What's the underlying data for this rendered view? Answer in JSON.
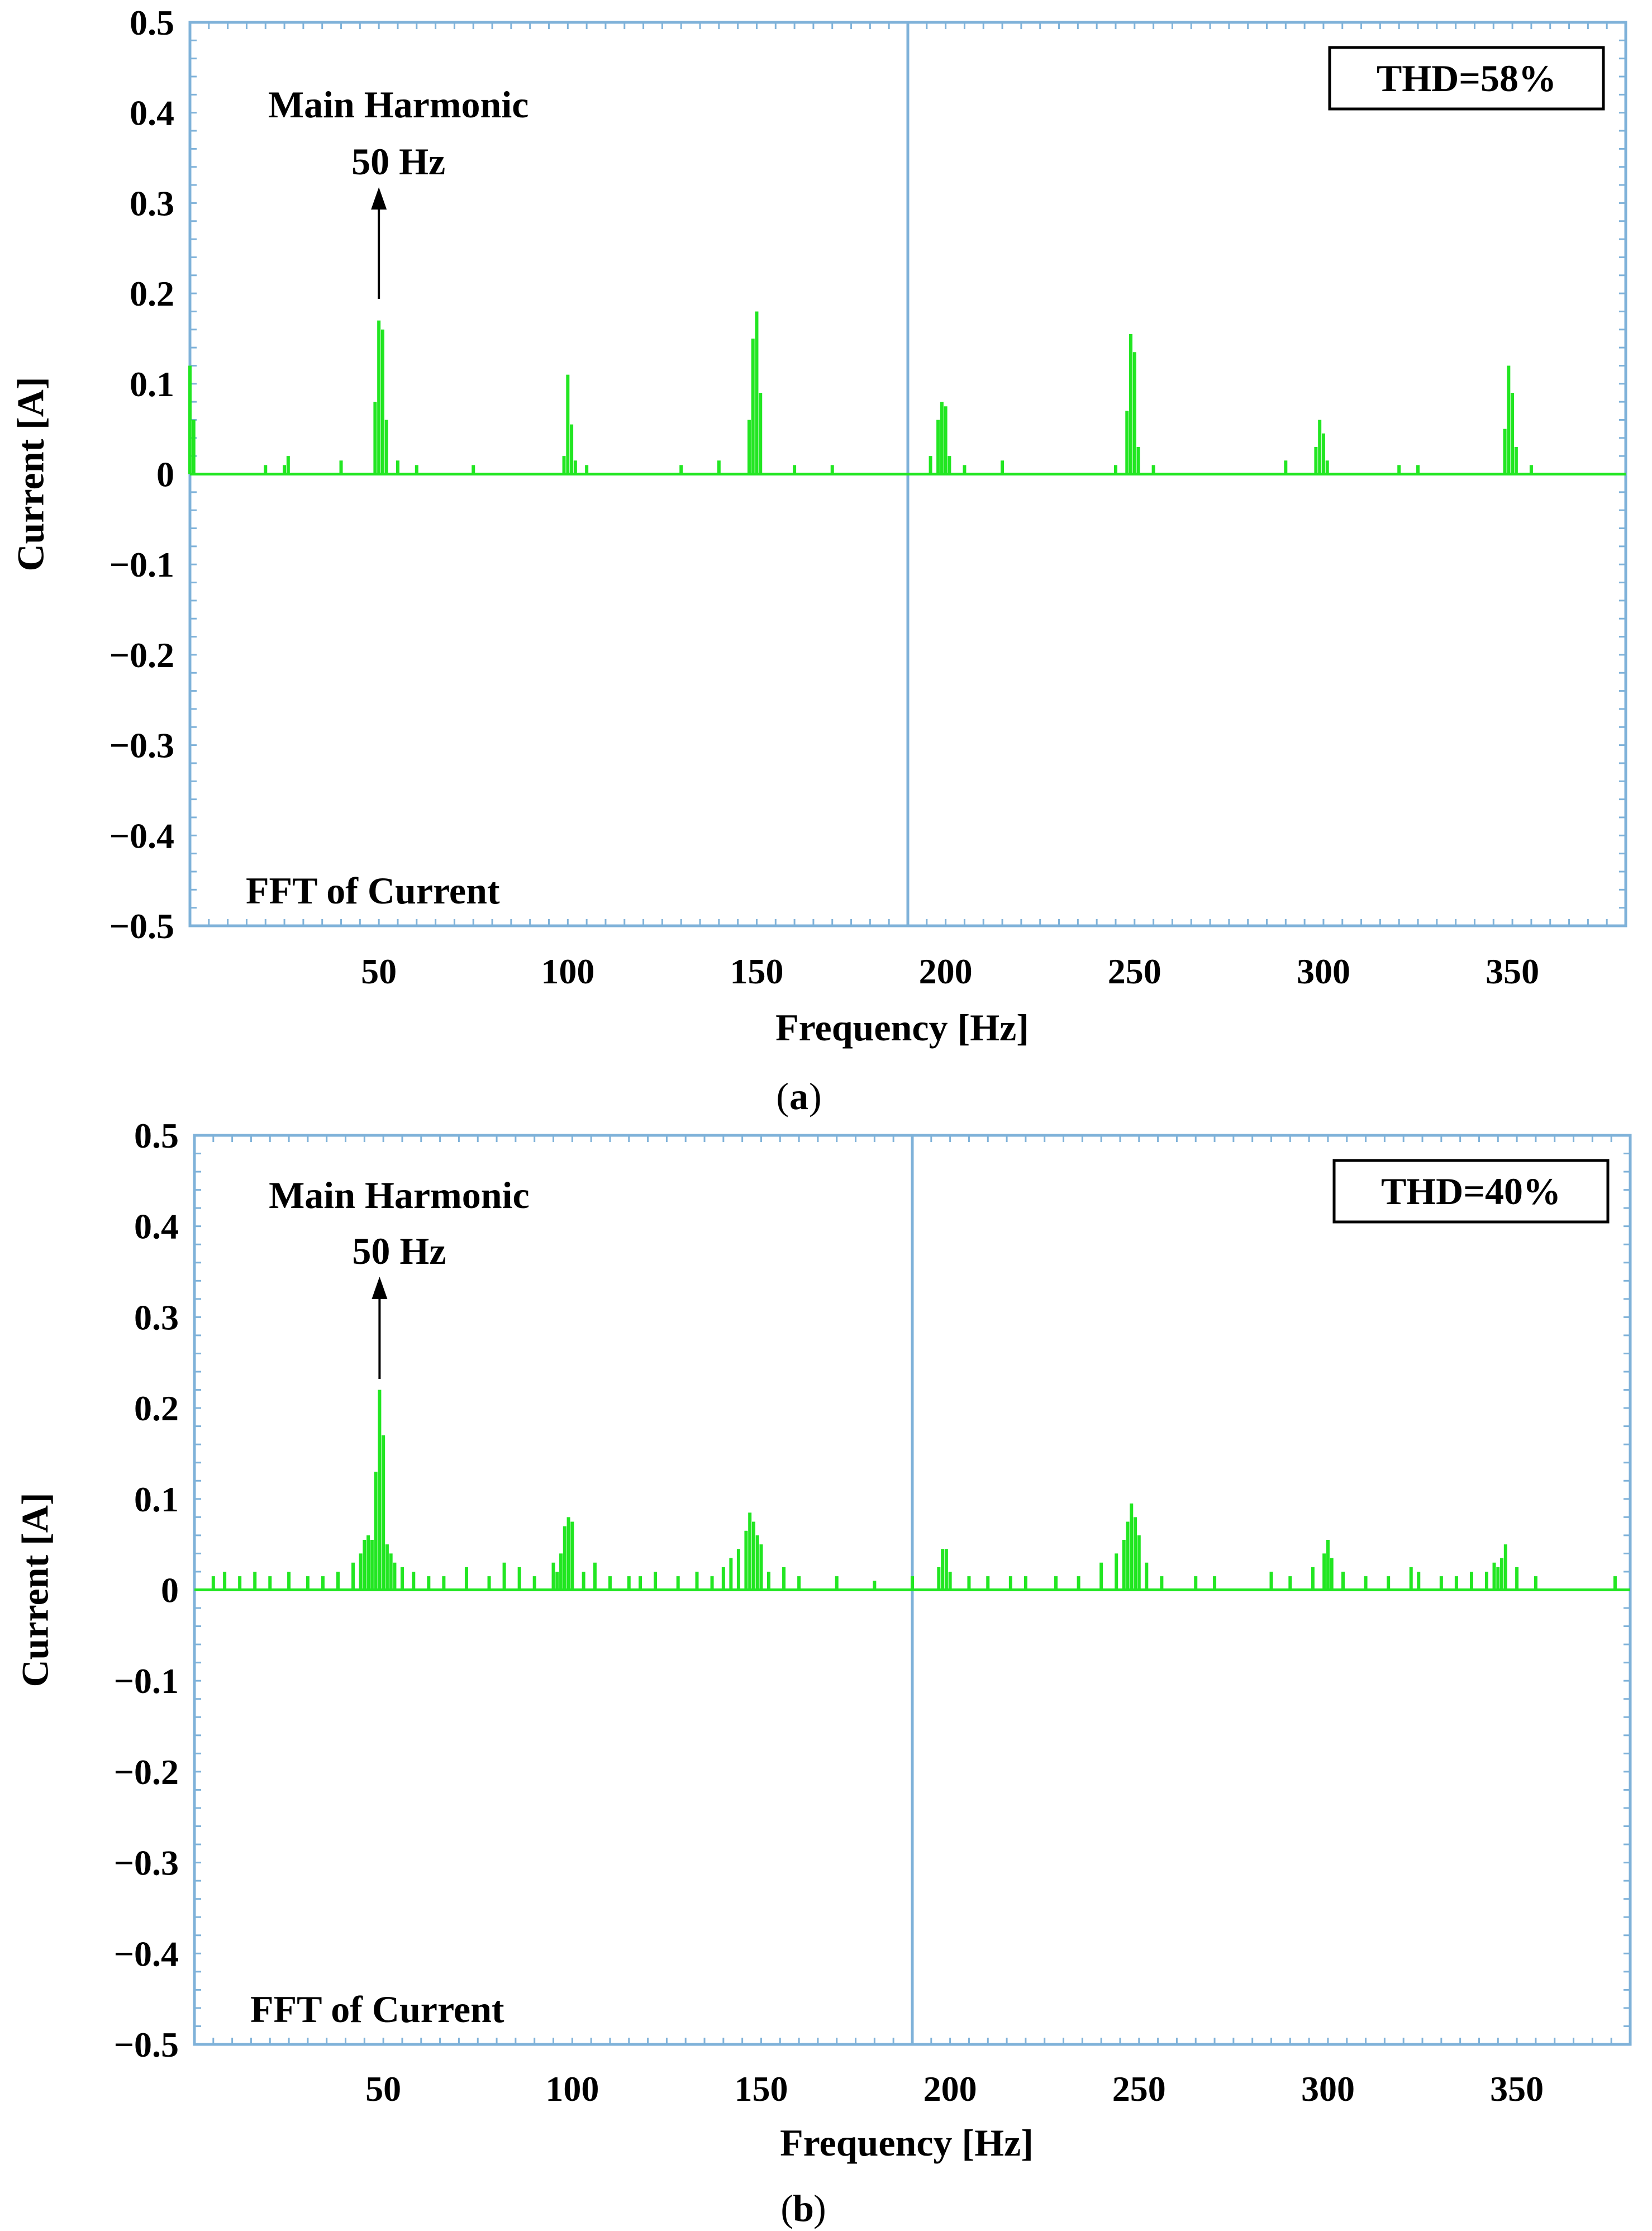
{
  "colors": {
    "frame": "#7fb2d9",
    "trace": "#22e622",
    "text": "#000000",
    "background": "#ffffff"
  },
  "chart_data": [
    {
      "type": "bar",
      "caption": "a",
      "xlabel": "Frequency [Hz]",
      "ylabel": "Current [A]",
      "xlim": [
        0,
        380
      ],
      "ylim": [
        -0.5,
        0.5
      ],
      "x_ticks": [
        "50",
        "100",
        "150",
        "200",
        "250",
        "300",
        "350"
      ],
      "y_ticks": [
        "0.5",
        "0.4",
        "0.3",
        "0.2",
        "0.1",
        "0",
        "−0.1",
        "−0.2",
        "−0.3",
        "−0.4",
        "−0.5"
      ],
      "annotation": {
        "line1": "Main Harmonic",
        "line2": "50 Hz",
        "x": 50
      },
      "thd": "THD=58%",
      "inner_label": "FFT of Current",
      "grid": "center cross",
      "x": [
        0,
        1,
        20,
        25,
        26,
        40,
        49,
        50,
        51,
        52,
        55,
        60,
        75,
        99,
        100,
        101,
        102,
        105,
        130,
        140,
        148,
        149,
        150,
        151,
        160,
        170,
        196,
        198,
        199,
        200,
        201,
        205,
        215,
        245,
        248,
        249,
        250,
        251,
        255,
        290,
        298,
        299,
        300,
        301,
        320,
        325,
        348,
        349,
        350,
        351,
        355
      ],
      "values": [
        0.12,
        0.06,
        0.01,
        0.01,
        0.02,
        0.015,
        0.08,
        0.17,
        0.16,
        0.06,
        0.015,
        0.01,
        0.01,
        0.02,
        0.11,
        0.055,
        0.015,
        0.01,
        0.01,
        0.015,
        0.06,
        0.15,
        0.18,
        0.09,
        0.01,
        0.01,
        0.02,
        0.06,
        0.08,
        0.075,
        0.02,
        0.01,
        0.015,
        0.01,
        0.07,
        0.155,
        0.135,
        0.03,
        0.01,
        0.015,
        0.03,
        0.06,
        0.045,
        0.015,
        0.01,
        0.01,
        0.05,
        0.12,
        0.09,
        0.03,
        0.01
      ]
    },
    {
      "type": "bar",
      "caption": "b",
      "xlabel": "Frequency [Hz]",
      "ylabel": "Current [A]",
      "xlim": [
        0,
        380
      ],
      "ylim": [
        -0.5,
        0.5
      ],
      "x_ticks": [
        "50",
        "100",
        "150",
        "200",
        "250",
        "300",
        "350"
      ],
      "y_ticks": [
        "0.5",
        "0.4",
        "0.3",
        "0.2",
        "0.1",
        "0",
        "−0.1",
        "−0.2",
        "−0.3",
        "−0.4",
        "−0.5"
      ],
      "annotation": {
        "line1": "Main Harmonic",
        "line2": "50 Hz",
        "x": 49
      },
      "thd": "THD=40%",
      "inner_label": "FFT of Current",
      "grid": "center cross",
      "x": [
        5,
        8,
        12,
        16,
        20,
        25,
        30,
        34,
        38,
        42,
        44,
        45,
        46,
        47,
        48,
        49,
        50,
        51,
        52,
        53,
        55,
        58,
        62,
        66,
        72,
        78,
        82,
        86,
        90,
        95,
        96,
        97,
        98,
        99,
        100,
        103,
        106,
        110,
        115,
        118,
        122,
        128,
        133,
        137,
        140,
        142,
        144,
        146,
        147,
        148,
        149,
        150,
        152,
        156,
        160,
        170,
        180,
        190,
        197,
        198,
        199,
        200,
        205,
        210,
        216,
        220,
        228,
        234,
        240,
        244,
        246,
        247,
        248,
        249,
        250,
        252,
        256,
        265,
        270,
        285,
        290,
        296,
        299,
        300,
        301,
        304,
        310,
        316,
        322,
        324,
        330,
        334,
        338,
        342,
        344,
        345,
        346,
        347,
        350,
        355,
        376
      ],
      "values": [
        0.015,
        0.02,
        0.015,
        0.02,
        0.015,
        0.02,
        0.015,
        0.015,
        0.02,
        0.03,
        0.04,
        0.055,
        0.06,
        0.055,
        0.13,
        0.22,
        0.17,
        0.05,
        0.04,
        0.03,
        0.025,
        0.02,
        0.015,
        0.015,
        0.025,
        0.015,
        0.03,
        0.025,
        0.015,
        0.03,
        0.02,
        0.04,
        0.07,
        0.08,
        0.075,
        0.02,
        0.03,
        0.015,
        0.015,
        0.015,
        0.02,
        0.015,
        0.02,
        0.015,
        0.025,
        0.035,
        0.045,
        0.065,
        0.085,
        0.075,
        0.06,
        0.05,
        0.02,
        0.025,
        0.015,
        0.015,
        0.01,
        0.015,
        0.025,
        0.045,
        0.045,
        0.02,
        0.015,
        0.015,
        0.015,
        0.015,
        0.015,
        0.015,
        0.03,
        0.04,
        0.055,
        0.075,
        0.095,
        0.08,
        0.06,
        0.03,
        0.015,
        0.015,
        0.015,
        0.02,
        0.015,
        0.025,
        0.04,
        0.055,
        0.035,
        0.02,
        0.015,
        0.015,
        0.025,
        0.02,
        0.015,
        0.015,
        0.02,
        0.02,
        0.03,
        0.025,
        0.035,
        0.05,
        0.025,
        0.015,
        0.015
      ]
    }
  ]
}
